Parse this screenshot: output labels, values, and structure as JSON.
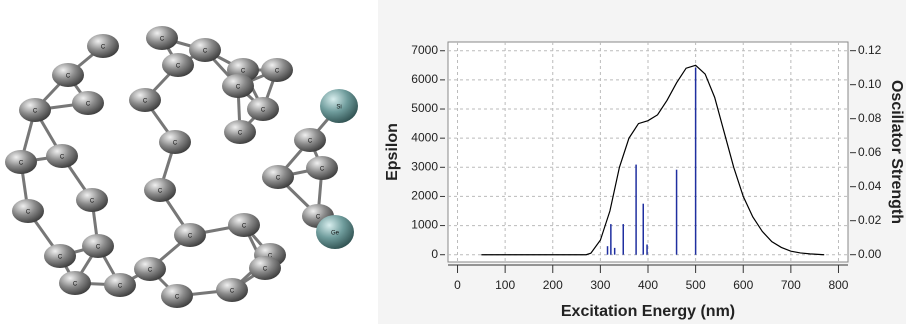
{
  "molecule": {
    "atoms": [
      "C",
      "C",
      "C",
      "C",
      "C",
      "C",
      "C",
      "C",
      "C",
      "C",
      "Si",
      "C",
      "C",
      "C",
      "C",
      "C",
      "C",
      "C",
      "C",
      "C",
      "C",
      "C",
      "C",
      "C",
      "C",
      "C",
      "Ge",
      "C",
      "C",
      "C",
      "C",
      "C",
      "C",
      "C",
      "C",
      "C"
    ]
  },
  "chart_data": {
    "type": "line",
    "x_label": "Excitation Energy (nm)",
    "y_label": "Epsilon",
    "y2_label": "Oscillator Strength",
    "xlim": [
      -20,
      820
    ],
    "xticks": [
      0,
      100,
      200,
      300,
      400,
      500,
      600,
      700,
      800
    ],
    "ylim": [
      -250,
      7300
    ],
    "yticks": [
      0,
      1000,
      2000,
      3000,
      4000,
      5000,
      6000,
      7000
    ],
    "y2lim": [
      -0.0043,
      0.1251
    ],
    "y2ticks": [
      {
        "value": 0,
        "label": "0.00"
      },
      {
        "value": 0.02,
        "label": "0.02"
      },
      {
        "value": 0.04,
        "label": "0.04"
      },
      {
        "value": 0.06,
        "label": "0.06"
      },
      {
        "value": 0.08,
        "label": "0.08"
      },
      {
        "value": 0.1,
        "label": "0.10"
      },
      {
        "value": 0.12,
        "label": "0.12"
      }
    ],
    "grid": true,
    "series": [
      {
        "type": "line",
        "color": "#000000",
        "x": [
          50,
          100,
          200,
          270,
          280,
          300,
          320,
          340,
          360,
          380,
          400,
          420,
          440,
          460,
          480,
          500,
          520,
          540,
          560,
          580,
          600,
          620,
          640,
          660,
          680,
          700,
          720,
          740,
          770
        ],
        "values": [
          0,
          0,
          0,
          0,
          50,
          500,
          1500,
          3000,
          4000,
          4500,
          4600,
          4800,
          5300,
          5900,
          6400,
          6500,
          6200,
          5400,
          4200,
          3000,
          2000,
          1300,
          800,
          450,
          250,
          120,
          60,
          30,
          0
        ]
      },
      {
        "type": "stem",
        "axis": "y2",
        "color": "#1f2fa0",
        "x": [
          315,
          322,
          330,
          348,
          375,
          390,
          398,
          460,
          500
        ],
        "values": [
          0.005,
          0.018,
          0.004,
          0.018,
          0.053,
          0.03,
          0.006,
          0.05,
          0.11
        ]
      }
    ]
  }
}
